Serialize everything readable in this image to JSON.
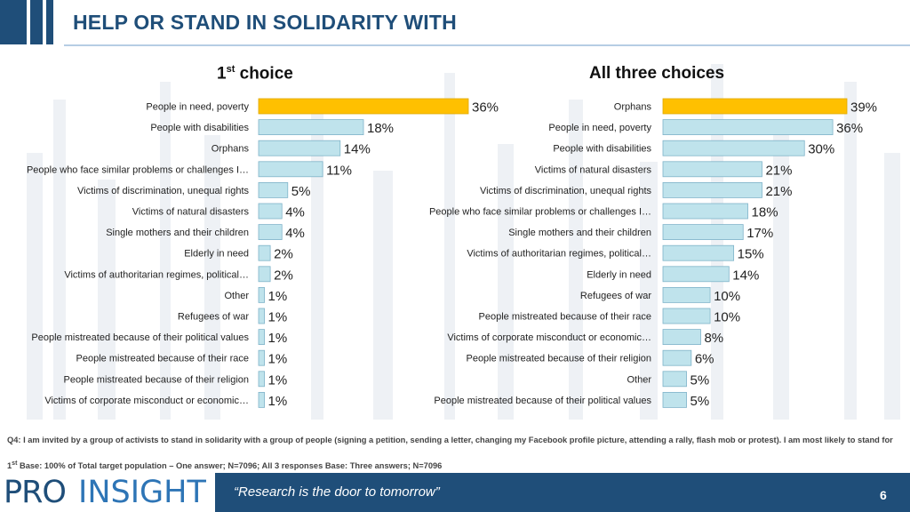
{
  "header": {
    "title": "HELP OR STAND IN SOLIDARITY WITH"
  },
  "colors": {
    "primary": "#1f4e79",
    "accent": "#2e75b6",
    "highlight_bar": "#ffc000",
    "bar": "#bfe3ec",
    "bar_stroke": "#7fb3c9"
  },
  "chart_data": [
    {
      "type": "bar",
      "orientation": "horizontal",
      "title_main": "1",
      "title_sup": "st",
      "title_rest": " choice",
      "xlim": [
        0,
        36
      ],
      "categories": [
        "People in need, poverty",
        "People with disabilities",
        "Orphans",
        "People who face similar problems or challenges I…",
        "Victims of discrimination, unequal rights",
        "Victims of natural disasters",
        "Single mothers and their children",
        "Elderly in need",
        "Victims of authoritarian regimes, political…",
        "Other",
        "Refugees of war",
        "People mistreated because of their political values",
        "People mistreated because of their race",
        "People mistreated because of their religion",
        "Victims of corporate misconduct or economic…"
      ],
      "values": [
        36,
        18,
        14,
        11,
        5,
        4,
        4,
        2,
        2,
        1,
        1,
        1,
        1,
        1,
        1
      ],
      "labels": [
        "36%",
        "18%",
        "14%",
        "11%",
        "5%",
        "4%",
        "4%",
        "2%",
        "2%",
        "1%",
        "1%",
        "1%",
        "1%",
        "1%",
        "1%"
      ],
      "highlight_index": 0
    },
    {
      "type": "bar",
      "orientation": "horizontal",
      "title_main": "All three choices",
      "xlim": [
        0,
        39
      ],
      "categories": [
        "Orphans",
        "People in need, poverty",
        "People with disabilities",
        "Victims of natural disasters",
        "Victims of discrimination, unequal rights",
        "People who face similar problems or challenges I…",
        "Single mothers and their children",
        "Victims of authoritarian regimes, political…",
        "Elderly in need",
        "Refugees of war",
        "People mistreated because of their race",
        "Victims of corporate misconduct or economic…",
        "People mistreated because of their religion",
        "Other",
        "People mistreated because of their political values"
      ],
      "values": [
        39,
        36,
        30,
        21,
        21,
        18,
        17,
        15,
        14,
        10,
        10,
        8,
        6,
        5,
        5
      ],
      "labels": [
        "39%",
        "36%",
        "30%",
        "21%",
        "21%",
        "18%",
        "17%",
        "15%",
        "14%",
        "10%",
        "10%",
        "8%",
        "6%",
        "5%",
        "5%"
      ],
      "highlight_index": 0
    }
  ],
  "notes": {
    "question": "Q4: I am invited by a group of activists to stand in solidarity with a group of people (signing a petition, sending a letter, changing my Facebook profile picture, attending a rally, flash mob or protest). I am most likely to stand for",
    "base_sup": "1st",
    "base_text": "Base: 100% of Total target population – One answer; N=7096; All 3 responses Base: Three answers; N=7096",
    "base_sup_main": "1",
    "base_sup_small": "st"
  },
  "footer": {
    "logo_pro": "PRO",
    "logo_insight": "INSIGHT",
    "tagline": "“Research is the door to tomorrow”",
    "page_number": "6"
  }
}
